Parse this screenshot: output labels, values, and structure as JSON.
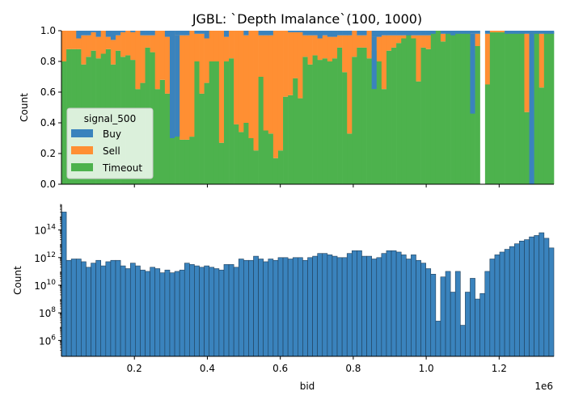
{
  "chart_data": [
    {
      "type": "bar",
      "stacked": "fill",
      "title": "JGBL: `Depth Imalance`(100, 1000)",
      "ylabel": "Count",
      "xlabel": "",
      "xlim": [
        0,
        1350000
      ],
      "ylim": [
        0,
        1
      ],
      "yticks": [
        "0.0",
        "0.2",
        "0.4",
        "0.6",
        "0.8",
        "1.0"
      ],
      "xticks": [
        200000,
        400000,
        600000,
        800000,
        1000000,
        1200000
      ],
      "bin_width": 13500,
      "legend": {
        "title": "signal_500",
        "position": "center-left",
        "entries": [
          "Buy",
          "Sell",
          "Timeout"
        ]
      },
      "series": [
        {
          "name": "Buy",
          "color": "#3a83bd"
        },
        {
          "name": "Sell",
          "color": "#ff8f33"
        },
        {
          "name": "Timeout",
          "color": "#4db24d"
        }
      ],
      "buy_tops": [
        1.0,
        1.0,
        1.0,
        0.95,
        0.97,
        0.97,
        0.99,
        0.96,
        1.0,
        0.96,
        0.94,
        0.97,
        0.99,
        1.0,
        0.99,
        1.0,
        0.97,
        0.97,
        0.97,
        1.0,
        1.0,
        0.96,
        1.0,
        0.97,
        0.97,
        0.97,
        1.0,
        0.98,
        0.98,
        0.95,
        1.0,
        1.0,
        1.0,
        0.96,
        1.0,
        1.0,
        1.0,
        0.97,
        1.0,
        1.0,
        0.97,
        0.97,
        0.97,
        1.0,
        1.0,
        1.0,
        0.99,
        0.99,
        0.99,
        0.97,
        0.97,
        0.97,
        0.95,
        0.97,
        0.96,
        0.96,
        0.97,
        0.97,
        0.97,
        1.0,
        0.97,
        0.97,
        1.0,
        0.96,
        0.96,
        0.97,
        0.97,
        0.97,
        0.97,
        0.97,
        0.97,
        0.97,
        0.97,
        0.97,
        0.97,
        0.98,
        1.0,
        0.98,
        0.98,
        0.97,
        0.98,
        0.98,
        0.98,
        0.98,
        0.98,
        0.98,
        0.98,
        1.0,
        1.0,
        1.0,
        0.98,
        0.98,
        0.98,
        0.98,
        0.98,
        0.98,
        0.98,
        0.98,
        0.98,
        0.98
      ],
      "timeout_tops": [
        0.8,
        0.88,
        0.88,
        0.88,
        0.78,
        0.83,
        0.87,
        0.82,
        0.85,
        0.88,
        0.78,
        0.87,
        0.83,
        0.84,
        0.81,
        0.62,
        0.66,
        0.89,
        0.86,
        0.62,
        0.68,
        0.59,
        0.36,
        0.35,
        0.29,
        0.29,
        0.31,
        0.8,
        0.59,
        0.66,
        0.8,
        0.8,
        0.27,
        0.8,
        0.82,
        0.39,
        0.34,
        0.4,
        0.3,
        0.22,
        0.7,
        0.35,
        0.33,
        0.17,
        0.22,
        0.57,
        0.58,
        0.69,
        0.56,
        0.83,
        0.78,
        0.84,
        0.81,
        0.82,
        0.8,
        0.82,
        0.89,
        0.73,
        0.33,
        0.83,
        0.89,
        0.89,
        0.82,
        0.87,
        0.8,
        0.62,
        0.87,
        0.89,
        0.92,
        0.95,
        0.98,
        0.95,
        0.67,
        0.89,
        0.88,
        0.99,
        1.0,
        0.93,
        1.0,
        0.99,
        0.99,
        0.99,
        0.99,
        0.85,
        0.9,
        0.99,
        0.65,
        0.99,
        0.99,
        0.99,
        0.99,
        0.99,
        0.99,
        0.99,
        0.47,
        0.99,
        0.99,
        0.63,
        0.99,
        0.99
      ]
    },
    {
      "type": "bar",
      "log_y": true,
      "title": "",
      "xlabel": "bid",
      "ylabel": "Count",
      "xlim": [
        0,
        1350000
      ],
      "x_offset_label": "1e6",
      "xtick_labels": [
        "0.2",
        "0.4",
        "0.6",
        "0.8",
        "1.0",
        "1.2"
      ],
      "xticks": [
        200000,
        400000,
        600000,
        800000,
        1000000,
        1200000
      ],
      "ylim_log10": [
        4.85,
        15.85
      ],
      "yticks_log10": [
        6,
        8,
        10,
        12,
        14
      ],
      "ytick_labels": [
        {
          "base": "10",
          "exp": "6"
        },
        {
          "base": "10",
          "exp": "8"
        },
        {
          "base": "10",
          "exp": "10"
        },
        {
          "base": "10",
          "exp": "12"
        },
        {
          "base": "10",
          "exp": "14"
        }
      ],
      "bin_width": 13500,
      "color": "#3a83bd",
      "log10_counts": [
        15.3,
        11.8,
        11.9,
        11.9,
        11.7,
        11.3,
        11.6,
        11.8,
        11.4,
        11.7,
        11.8,
        11.8,
        11.4,
        11.2,
        11.6,
        11.4,
        11.1,
        11.0,
        11.3,
        11.2,
        10.9,
        11.1,
        10.9,
        11.0,
        11.1,
        11.6,
        11.5,
        11.4,
        11.3,
        11.4,
        11.3,
        11.2,
        11.1,
        11.5,
        11.5,
        11.3,
        11.9,
        11.8,
        11.8,
        12.1,
        11.9,
        11.7,
        11.9,
        11.8,
        12.0,
        12.0,
        11.9,
        12.0,
        12.0,
        11.8,
        12.0,
        12.1,
        12.3,
        12.3,
        12.2,
        12.1,
        12.0,
        12.0,
        12.3,
        12.5,
        12.5,
        12.1,
        12.1,
        11.9,
        12.0,
        12.3,
        12.5,
        12.5,
        12.4,
        12.2,
        11.9,
        12.2,
        11.8,
        11.6,
        11.2,
        10.8,
        7.4,
        10.6,
        11.0,
        9.5,
        11.0,
        7.1,
        9.5,
        10.5,
        9.0,
        9.4,
        11.0,
        11.9,
        12.2,
        12.4,
        12.6,
        12.8,
        13.0,
        13.2,
        13.3,
        13.5,
        13.6,
        13.8,
        13.4,
        12.7
      ]
    }
  ]
}
